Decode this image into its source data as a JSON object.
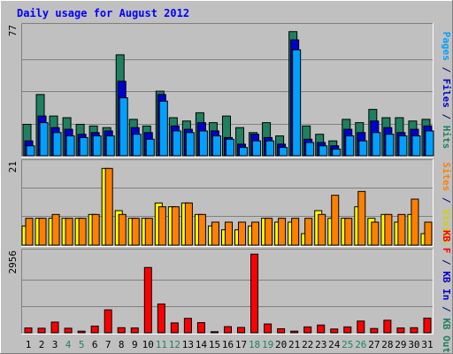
{
  "chart_data": {
    "type": "bar",
    "title": "Daily usage for August 2012",
    "categories": [
      "1",
      "2",
      "3",
      "4",
      "5",
      "6",
      "7",
      "8",
      "9",
      "10",
      "11",
      "12",
      "13",
      "14",
      "15",
      "16",
      "17",
      "18",
      "19",
      "20",
      "21",
      "22",
      "23",
      "24",
      "25",
      "26",
      "27",
      "28",
      "29",
      "30",
      "31"
    ],
    "weekend_days": [
      "4",
      "5",
      "11",
      "12",
      "18",
      "19",
      "25",
      "26"
    ],
    "panels": [
      {
        "id": "hits",
        "ymax_label": "77",
        "ylim": [
          0,
          77
        ],
        "right_labels": [
          {
            "text": "Pages",
            "color": "#00a0ff"
          },
          {
            "text": " / ",
            "color": "#000080"
          },
          {
            "text": "Files",
            "color": "#0000d0"
          },
          {
            "text": " / ",
            "color": "#000080"
          },
          {
            "text": "Hits",
            "color": "#208060"
          }
        ],
        "series": [
          {
            "name": "Hits",
            "color": "#1e8060",
            "values": [
              19,
              37,
              24,
              23,
              19,
              18,
              17,
              61,
              22,
              18,
              39,
              23,
              21,
              26,
              20,
              24,
              17,
              14,
              20,
              12,
              75,
              18,
              13,
              9,
              22,
              20,
              28,
              23,
              23,
              21,
              22
            ]
          },
          {
            "name": "Files",
            "color": "#0000d0",
            "values": [
              9,
              24,
              17,
              16,
              13,
              14,
              15,
              45,
              17,
              14,
              37,
              18,
              16,
              20,
              15,
              11,
              7,
              13,
              11,
              7,
              70,
              10,
              8,
              6,
              16,
              14,
              21,
              17,
              14,
              16,
              18
            ]
          },
          {
            "name": "Pages",
            "color": "#00a0ff",
            "values": [
              6,
              20,
              14,
              12,
              11,
              12,
              12,
              35,
              13,
              10,
              33,
              15,
              14,
              15,
              12,
              10,
              5,
              9,
              9,
              5,
              64,
              8,
              6,
              4,
              12,
              9,
              14,
              13,
              12,
              12,
              15
            ]
          }
        ]
      },
      {
        "id": "visits",
        "ymax_label": "21",
        "ylim": [
          0,
          21
        ],
        "right_labels": [
          {
            "text": "Sites",
            "color": "#ff8000"
          },
          {
            "text": " / ",
            "color": "#000080"
          },
          {
            "text": "Visits",
            "color": "#d0d000"
          }
        ],
        "series": [
          {
            "name": "Visits",
            "color": "#ffff00",
            "values": [
              5,
              7,
              7,
              7,
              7,
              8,
              20,
              9,
              7,
              7,
              11,
              10,
              11,
              8,
              5,
              4,
              4,
              5,
              7,
              6,
              6,
              3,
              9,
              7,
              7,
              10,
              7,
              8,
              6,
              8,
              3
            ]
          },
          {
            "name": "Sites",
            "color": "#ff8000",
            "values": [
              7,
              7,
              8,
              7,
              7,
              8,
              20,
              8,
              7,
              7,
              10,
              10,
              11,
              8,
              6,
              6,
              6,
              6,
              7,
              7,
              7,
              7,
              8,
              13,
              7,
              14,
              6,
              8,
              8,
              12,
              6
            ]
          }
        ]
      },
      {
        "id": "kbytes",
        "ymax_label": "2956",
        "ylim": [
          0,
          2956
        ],
        "right_labels": [
          {
            "text": "KB F",
            "color": "#ff0000"
          },
          {
            "text": " / ",
            "color": "#000080"
          },
          {
            "text": "KB In",
            "color": "#0000d0"
          },
          {
            "text": " / ",
            "color": "#000080"
          },
          {
            "text": "KB Out",
            "color": "#208060"
          }
        ],
        "series": [
          {
            "name": "KB F",
            "color": "#ff0000",
            "values": [
              180,
              170,
              400,
              170,
              60,
              250,
              860,
              190,
              180,
              2450,
              1080,
              370,
              540,
              380,
              40,
              230,
              200,
              2950,
              330,
              150,
              60,
              220,
              290,
              140,
              220,
              440,
              160,
              470,
              180,
              190,
              550
            ]
          }
        ]
      }
    ]
  }
}
